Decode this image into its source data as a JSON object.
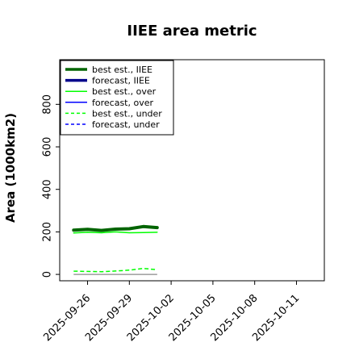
{
  "chart_data": {
    "type": "line",
    "title": "IIEE area metric",
    "ylabel": "Area (1000km2)",
    "xlabel": "",
    "ylim": [
      -30,
      1010
    ],
    "xlim": [
      "2025-09-24",
      "2025-10-13"
    ],
    "x_ticks": [
      "2025-09-26",
      "2025-09-29",
      "2025-10-02",
      "2025-10-05",
      "2025-10-08",
      "2025-10-11"
    ],
    "x_tick_colors": [
      "#000000",
      "#000000",
      "#228b22",
      "#000000",
      "#000000",
      "#000000"
    ],
    "y_ticks": [
      0,
      200,
      400,
      600,
      800
    ],
    "grid": false,
    "legend_position": "top-left",
    "series": [
      {
        "name": "best est., IIEE",
        "color": "#006400",
        "style": "solid",
        "width": 4,
        "x": [
          "2025-09-25",
          "2025-09-26",
          "2025-09-27",
          "2025-09-28",
          "2025-09-29",
          "2025-09-30",
          "2025-10-01"
        ],
        "values": [
          208,
          212,
          207,
          213,
          215,
          225,
          220
        ]
      },
      {
        "name": "forecast, IIEE",
        "color": "#00008b",
        "style": "solid",
        "width": 4,
        "x": [],
        "values": []
      },
      {
        "name": "best est., over",
        "color": "#00ff00",
        "style": "solid",
        "width": 1.5,
        "x": [
          "2025-09-25",
          "2025-09-26",
          "2025-09-27",
          "2025-09-28",
          "2025-09-29",
          "2025-09-30",
          "2025-10-01"
        ],
        "values": [
          195,
          198,
          196,
          200,
          196,
          197,
          198
        ]
      },
      {
        "name": "forecast, over",
        "color": "#0000ff",
        "style": "solid",
        "width": 1.5,
        "x": [],
        "values": []
      },
      {
        "name": "best est., under",
        "color": "#00ff00",
        "style": "dashed",
        "width": 1.5,
        "x": [
          "2025-09-25",
          "2025-09-26",
          "2025-09-27",
          "2025-09-28",
          "2025-09-29",
          "2025-09-30",
          "2025-10-01"
        ],
        "values": [
          15,
          14,
          13,
          16,
          20,
          28,
          22
        ]
      },
      {
        "name": "forecast, under",
        "color": "#0000ff",
        "style": "dashed",
        "width": 1.5,
        "x": [],
        "values": []
      }
    ]
  }
}
